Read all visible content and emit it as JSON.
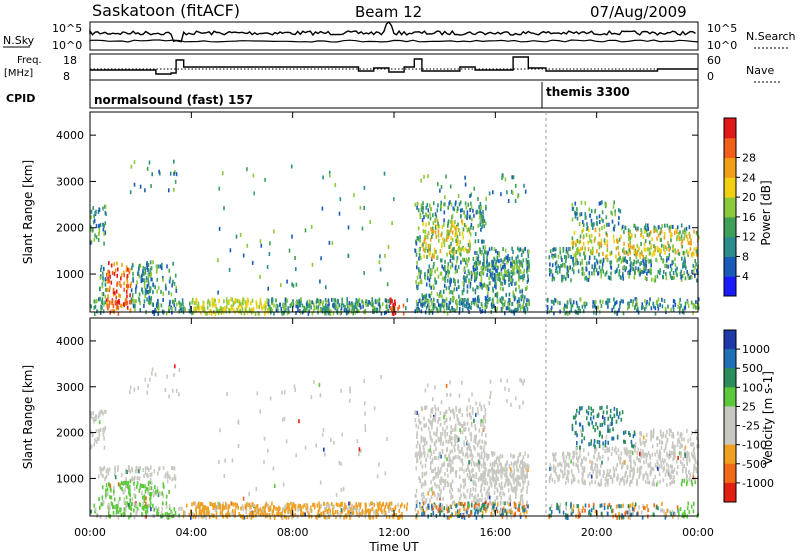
{
  "header": {
    "radar": "Saskatoon (fitACF)",
    "beam": "Beam 12",
    "date": "07/Aug/2009"
  },
  "panels": {
    "nsky_label": "N.Sky",
    "nsearch_label": "N.Search",
    "freq_label_1": "Freq.",
    "freq_label_2": "[MHz]",
    "nave_label": "Nave",
    "cpid_label": "CPID",
    "nsky_ticks": [
      "10^5",
      "10^0"
    ],
    "nsearch_ticks": [
      "10^5",
      "10^0"
    ],
    "freq_ticks": [
      "18",
      "8"
    ],
    "nave_ticks": [
      "60",
      "0"
    ],
    "cpid_segments": [
      {
        "label": "normalsound (fast) 157",
        "start_hour": 0
      },
      {
        "label": "themis 3300",
        "start_hour": 18
      }
    ]
  },
  "chart_data": [
    {
      "type": "heatmap",
      "name": "power",
      "ylabel": "Slant Range [km]",
      "ylim": [
        180,
        4500
      ],
      "yticks": [
        "1000",
        "2000",
        "3000",
        "4000"
      ],
      "xlim_hours": [
        0,
        24
      ],
      "colorbar": {
        "label": "Power [dB]",
        "ticks": [
          "4",
          "8",
          "12",
          "16",
          "20",
          "24",
          "28"
        ],
        "colors": [
          "#1a1aff",
          "#1a5ab8",
          "#2a8c8c",
          "#3fa05a",
          "#8cc83c",
          "#f0d010",
          "#f0a018",
          "#f06018",
          "#e01818"
        ]
      }
    },
    {
      "type": "heatmap",
      "name": "velocity",
      "ylabel": "Slant Range [km]",
      "ylim": [
        180,
        4500
      ],
      "yticks": [
        "1000",
        "2000",
        "3000",
        "4000"
      ],
      "xlim_hours": [
        0,
        24
      ],
      "xticks": [
        "00:00",
        "04:00",
        "08:00",
        "12:00",
        "16:00",
        "20:00",
        "00:00"
      ],
      "xlabel": "Time UT",
      "colorbar": {
        "label": "Velocity [m s-1]",
        "ticks": [
          "1000",
          "500",
          "100",
          "25",
          "-25",
          "-100",
          "-500",
          "-1000"
        ],
        "colors": [
          "#1f3aa8",
          "#1e6fb4",
          "#2c8c5a",
          "#5cc83c",
          "#c8c8c0",
          "#c8c8c0",
          "#f0a020",
          "#f06a18",
          "#e02010"
        ]
      }
    }
  ]
}
